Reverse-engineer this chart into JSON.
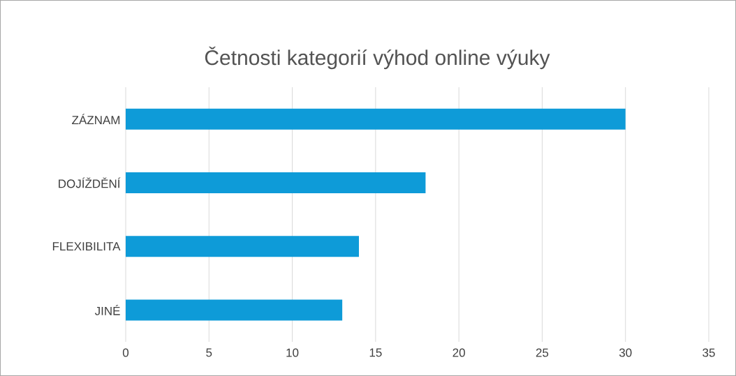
{
  "chart_data": {
    "type": "bar",
    "orientation": "horizontal",
    "title": "Četnosti kategorií výhod online výuky",
    "categories": [
      "ZÁZNAM",
      "DOJÍŽDĚNÍ",
      "FLEXIBILITA",
      "JINÉ"
    ],
    "values": [
      30,
      18,
      14,
      13
    ],
    "color": "#0e9bd8",
    "xlim": [
      0,
      35
    ],
    "xticks": [
      0,
      5,
      10,
      15,
      20,
      25,
      30,
      35
    ],
    "grid": "x"
  }
}
